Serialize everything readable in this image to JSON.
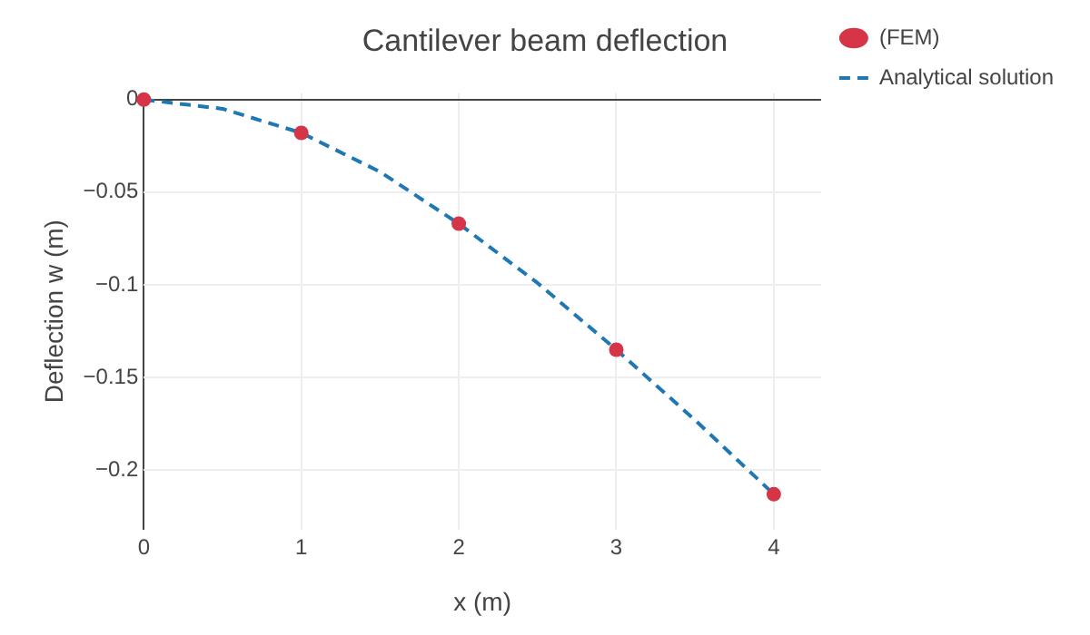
{
  "chart_data": {
    "type": "scatter",
    "title": "Cantilever beam deflection",
    "xlabel": "x (m)",
    "ylabel": "Deflection w (m)",
    "xlim": [
      0,
      4.3
    ],
    "ylim": [
      -0.232,
      0.0034
    ],
    "xticks": [
      0,
      1,
      2,
      3,
      4
    ],
    "yticks": [
      {
        "value": -0.2,
        "label": "−0.2"
      },
      {
        "value": -0.15,
        "label": "−0.15"
      },
      {
        "value": -0.1,
        "label": "−0.1"
      },
      {
        "value": -0.05,
        "label": "−0.05"
      },
      0
    ],
    "grid": true,
    "legend": "top right",
    "series": [
      {
        "name": "(FEM)",
        "marker": "circle",
        "color": "#d63447",
        "x": [
          0,
          1,
          2,
          3,
          4
        ],
        "values": [
          0,
          -0.018,
          -0.067,
          -0.135,
          -0.213
        ]
      },
      {
        "name": "Analytical solution",
        "type": "line",
        "marker": "none",
        "line_style": "dashed",
        "color": "#1f77b4",
        "x": [
          0,
          0.5,
          1,
          1.5,
          2,
          2.5,
          3,
          3.5,
          4
        ],
        "values": [
          0,
          -0.005,
          -0.018,
          -0.039,
          -0.067,
          -0.099,
          -0.135,
          -0.173,
          -0.213
        ]
      }
    ]
  }
}
